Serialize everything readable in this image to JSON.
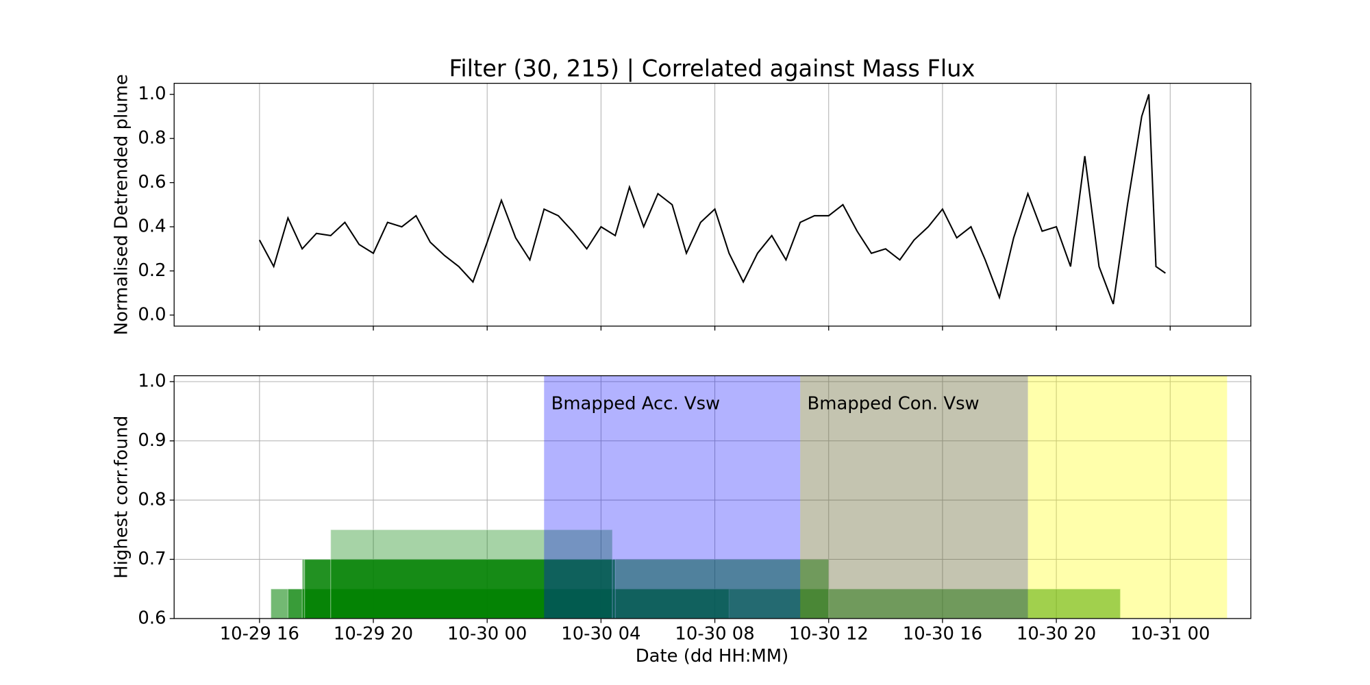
{
  "chart_data": [
    {
      "type": "line",
      "title": "Filter (30, 215) | Correlated against Mass Flux",
      "ylabel": "Normalised Detrended plume",
      "color": "#000000",
      "grid": "x",
      "x": [
        "10-29 16:00",
        "10-29 16:30",
        "10-29 17:00",
        "10-29 17:30",
        "10-29 18:00",
        "10-29 18:30",
        "10-29 19:00",
        "10-29 19:30",
        "10-29 20:00",
        "10-29 20:30",
        "10-29 21:00",
        "10-29 21:30",
        "10-29 22:00",
        "10-29 22:30",
        "10-29 23:00",
        "10-29 23:30",
        "10-30 00:00",
        "10-30 00:30",
        "10-30 01:00",
        "10-30 01:30",
        "10-30 02:00",
        "10-30 02:30",
        "10-30 03:00",
        "10-30 03:30",
        "10-30 04:00",
        "10-30 04:30",
        "10-30 05:00",
        "10-30 05:30",
        "10-30 06:00",
        "10-30 06:30",
        "10-30 07:00",
        "10-30 07:30",
        "10-30 08:00",
        "10-30 08:30",
        "10-30 09:00",
        "10-30 09:30",
        "10-30 10:00",
        "10-30 10:30",
        "10-30 11:00",
        "10-30 11:30",
        "10-30 12:00",
        "10-30 12:30",
        "10-30 13:00",
        "10-30 13:30",
        "10-30 14:00",
        "10-30 14:30",
        "10-30 15:00",
        "10-30 15:30",
        "10-30 16:00",
        "10-30 16:30",
        "10-30 17:00",
        "10-30 17:30",
        "10-30 18:00",
        "10-30 18:30",
        "10-30 19:00",
        "10-30 19:30",
        "10-30 20:00",
        "10-30 20:30",
        "10-30 21:00",
        "10-30 21:30",
        "10-30 22:00",
        "10-30 22:30",
        "10-30 23:00",
        "10-30 23:15",
        "10-30 23:30",
        "10-30 23:50"
      ],
      "values": [
        0.34,
        0.22,
        0.44,
        0.3,
        0.37,
        0.36,
        0.42,
        0.32,
        0.28,
        0.42,
        0.4,
        0.45,
        0.33,
        0.27,
        0.22,
        0.15,
        0.33,
        0.52,
        0.35,
        0.25,
        0.48,
        0.45,
        0.38,
        0.3,
        0.4,
        0.36,
        0.58,
        0.4,
        0.55,
        0.5,
        0.28,
        0.42,
        0.48,
        0.28,
        0.15,
        0.28,
        0.36,
        0.25,
        0.42,
        0.45,
        0.45,
        0.5,
        0.38,
        0.28,
        0.3,
        0.25,
        0.34,
        0.4,
        0.48,
        0.35,
        0.4,
        0.25,
        0.08,
        0.35,
        0.55,
        0.38,
        0.4,
        0.22,
        0.72,
        0.22,
        0.05,
        0.5,
        0.9,
        1.0,
        0.22,
        0.19
      ],
      "xlim": [
        "10-29 13:00",
        "10-31 02:50"
      ],
      "xticks": [
        "10-29 16:00",
        "10-29 20:00",
        "10-30 00:00",
        "10-30 04:00",
        "10-30 08:00",
        "10-30 12:00",
        "10-30 16:00",
        "10-30 20:00",
        "10-31 00:00"
      ],
      "ylim": [
        -0.05,
        1.05
      ],
      "yticks": [
        {
          "value": 0,
          "label": "0.0"
        },
        0.2,
        0.4,
        0.6,
        0.8,
        {
          "value": 1,
          "label": "1.0"
        }
      ]
    },
    {
      "type": "span",
      "ylabel": "Highest corr.found",
      "xlabel": "Date (dd HH:MM)",
      "grid": "both",
      "xlim": [
        "10-29 13:00",
        "10-31 02:50"
      ],
      "xticks": [
        {
          "value": "10-29 16:00",
          "label": "10-29 16"
        },
        {
          "value": "10-29 20:00",
          "label": "10-29 20"
        },
        {
          "value": "10-30 00:00",
          "label": "10-30 00"
        },
        {
          "value": "10-30 04:00",
          "label": "10-30 04"
        },
        {
          "value": "10-30 08:00",
          "label": "10-30 08"
        },
        {
          "value": "10-30 12:00",
          "label": "10-30 12"
        },
        {
          "value": "10-30 16:00",
          "label": "10-30 16"
        },
        {
          "value": "10-30 20:00",
          "label": "10-30 20"
        },
        {
          "value": "10-31 00:00",
          "label": "10-31 00"
        }
      ],
      "ylim": [
        0.6,
        1.01
      ],
      "yticks": [
        0.6,
        0.7,
        0.8,
        0.9,
        {
          "value": 1,
          "label": "1.0"
        }
      ],
      "bars": [
        {
          "start": "10-29 16:24",
          "end": "10-30 22:15",
          "value": 0.65,
          "color": "#008000",
          "opacity": 0.55
        },
        {
          "start": "10-29 17:00",
          "end": "10-30 08:30",
          "value": 0.65,
          "color": "#008000",
          "opacity": 0.5
        },
        {
          "start": "10-29 17:30",
          "end": "10-30 12:00",
          "value": 0.7,
          "color": "#008000",
          "opacity": 0.55
        },
        {
          "start": "10-29 17:35",
          "end": "10-30 04:30",
          "value": 0.7,
          "color": "#008000",
          "opacity": 0.7
        },
        {
          "start": "10-29 18:30",
          "end": "10-30 04:24",
          "value": 0.75,
          "color": "#008000",
          "opacity": 0.35
        }
      ],
      "spans": [
        {
          "start": "10-30 02:00",
          "end": "10-30 11:00",
          "color": "#0000ff",
          "opacity": 0.3,
          "label": "Bmapped Acc. Vsw"
        },
        {
          "start": "10-30 11:00",
          "end": "10-30 19:00",
          "color": "#6b6b3a",
          "opacity": 0.4,
          "label": "Bmapped Con. Vsw"
        },
        {
          "start": "10-30 19:00",
          "end": "10-31 02:00",
          "color": "#ffff00",
          "opacity": 0.33
        }
      ]
    }
  ]
}
